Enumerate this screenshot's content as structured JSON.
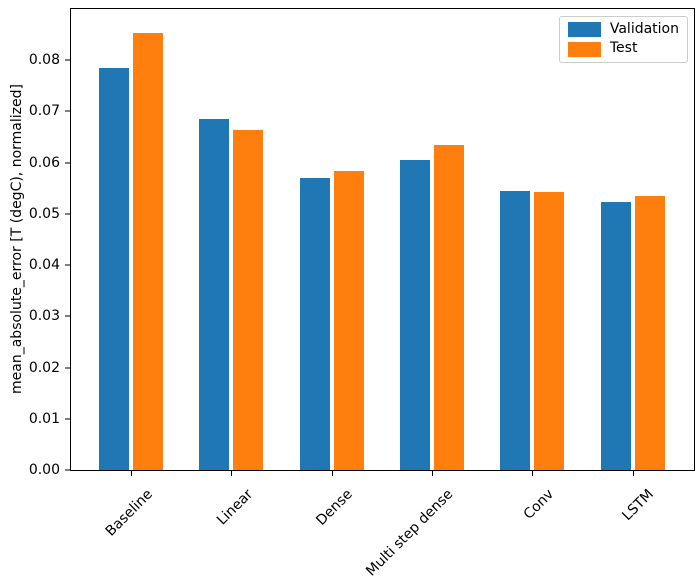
{
  "figure": {
    "background": "#ffffff",
    "frame_color": "#000000"
  },
  "chart_data": {
    "type": "bar",
    "title": "",
    "categories": [
      "Baseline",
      "Linear",
      "Dense",
      "Multi step dense",
      "Conv",
      "LSTM"
    ],
    "series": [
      {
        "name": "Validation",
        "color": "#1f77b4",
        "values": [
          0.0785,
          0.0686,
          0.0571,
          0.0606,
          0.0545,
          0.0524
        ]
      },
      {
        "name": "Test",
        "color": "#ff7f0e",
        "values": [
          0.0853,
          0.0664,
          0.0583,
          0.0634,
          0.0543,
          0.0534
        ]
      }
    ],
    "xlabel": "",
    "ylabel": "mean_absolute_error [T (degC), normalized]",
    "ylim": [
      0,
      0.09
    ],
    "y_ticks": [
      0,
      0.01,
      0.02,
      0.03,
      0.04,
      0.05,
      0.06,
      0.07,
      0.08
    ],
    "y_tick_labels": [
      "0.00",
      "0.01",
      "0.02",
      "0.03",
      "0.04",
      "0.05",
      "0.06",
      "0.07",
      "0.08"
    ],
    "grid": false,
    "x_tick_rotation_deg": 45,
    "legend": {
      "position": "upper-right",
      "entries": [
        "Validation",
        "Test"
      ]
    }
  }
}
